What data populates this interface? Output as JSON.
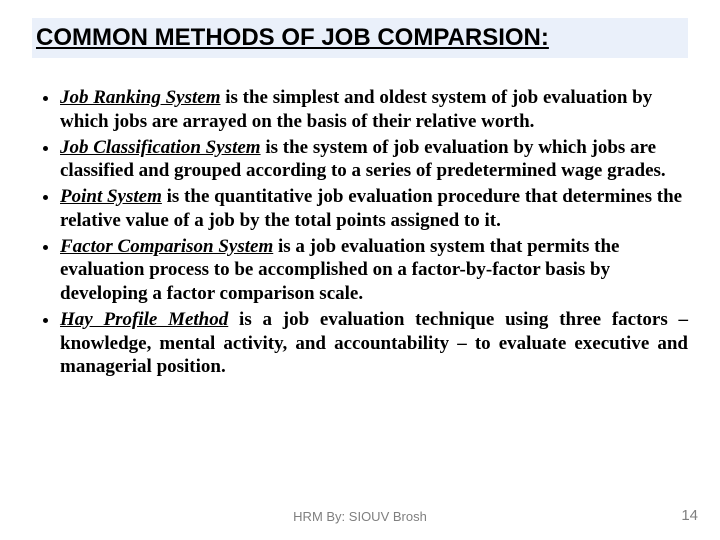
{
  "title": "COMMON METHODS OF JOB COMPARSION:",
  "bullets": [
    {
      "term": "Job Ranking System",
      "rest": " is the simplest and oldest system of job evaluation by which jobs are arrayed on the basis of their relative worth.",
      "justify": false
    },
    {
      "term": "Job Classification System",
      "rest": " is the system of job evaluation by which jobs are classified and grouped according to a series of predetermined wage grades.",
      "justify": false
    },
    {
      "term": "Point System",
      "rest": " is the quantitative job evaluation procedure that determines the relative value of a job by the total points assigned to it.",
      "justify": false
    },
    {
      "term": "Factor Comparison System",
      "rest": " is a job evaluation system that permits the evaluation process to be accomplished on a factor-by-factor basis by developing a factor comparison scale.",
      "justify": false
    },
    {
      "term": "Hay Profile Method",
      "rest": " is a job evaluation technique using three factors – knowledge, mental activity, and accountability – to evaluate executive and managerial position.",
      "justify": true
    }
  ],
  "footer": "HRM By: SIOUV Brosh",
  "pagenum": "14",
  "colors": {
    "title_bg": "#eaf0fa",
    "text": "#000000",
    "footer": "#7f7f7f"
  }
}
